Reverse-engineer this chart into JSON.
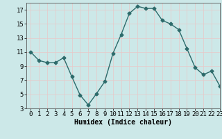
{
  "x": [
    0,
    1,
    2,
    3,
    4,
    5,
    6,
    7,
    8,
    9,
    10,
    11,
    12,
    13,
    14,
    15,
    16,
    17,
    18,
    19,
    20,
    21,
    22,
    23
  ],
  "y": [
    11,
    9.8,
    9.5,
    9.5,
    10.2,
    7.5,
    4.9,
    3.5,
    5.1,
    6.8,
    10.8,
    13.5,
    16.5,
    17.5,
    17.2,
    17.2,
    15.5,
    15.0,
    14.2,
    11.5,
    8.8,
    7.8,
    8.3,
    6.2
  ],
  "line_color": "#2d6b6b",
  "marker": "D",
  "marker_size": 2.5,
  "bg_color": "#cce8e8",
  "grid_color": "#e8c8c8",
  "xlabel": "Humidex (Indice chaleur)",
  "ylim": [
    3,
    18
  ],
  "xlim": [
    -0.5,
    23
  ],
  "yticks": [
    3,
    5,
    7,
    9,
    11,
    13,
    15,
    17
  ],
  "xticks": [
    0,
    1,
    2,
    3,
    4,
    5,
    6,
    7,
    8,
    9,
    10,
    11,
    12,
    13,
    14,
    15,
    16,
    17,
    18,
    19,
    20,
    21,
    22,
    23
  ],
  "xlabel_fontsize": 7,
  "tick_fontsize": 6.5,
  "line_width": 1.0,
  "fig_bg": "#cce8e8"
}
